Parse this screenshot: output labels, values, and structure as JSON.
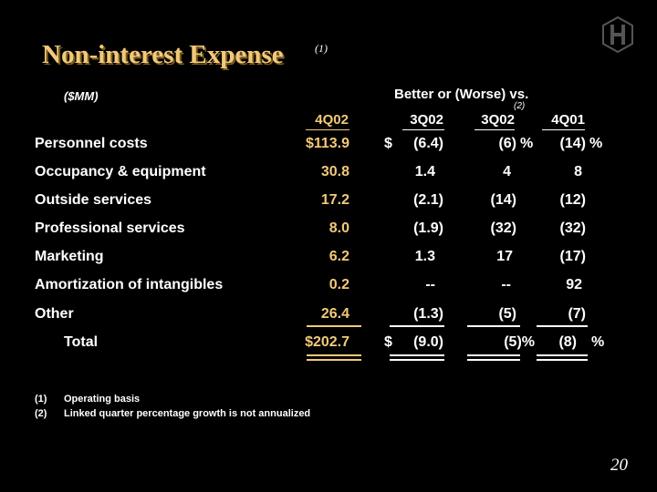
{
  "title": "Non-interest Expense",
  "title_note": "(1)",
  "units": "($MM)",
  "better_header": "Better or (Worse) vs.",
  "better_note": "(2)",
  "columns": [
    "4Q02",
    "3Q02",
    "3Q02",
    "4Q01"
  ],
  "rows": [
    {
      "label": "Personnel costs",
      "v0": "$113.9",
      "d": "$",
      "v1": "(6.4)",
      "v2": "(6)",
      "p2": "%",
      "v3": "(14)",
      "p3": "%"
    },
    {
      "label": "Occupancy & equipment",
      "v0": "30.8",
      "d": "",
      "v1": "1.4",
      "v2": "4",
      "p2": "",
      "v3": "8",
      "p3": ""
    },
    {
      "label": "Outside services",
      "v0": "17.2",
      "d": "",
      "v1": "(2.1)",
      "v2": "(14)",
      "p2": "",
      "v3": "(12)",
      "p3": ""
    },
    {
      "label": "Professional services",
      "v0": "8.0",
      "d": "",
      "v1": "(1.9)",
      "v2": "(32)",
      "p2": "",
      "v3": "(32)",
      "p3": ""
    },
    {
      "label": "Marketing",
      "v0": "6.2",
      "d": "",
      "v1": "1.3",
      "v2": "17",
      "p2": "",
      "v3": "(17)",
      "p3": ""
    },
    {
      "label": "Amortization of intangibles",
      "v0": "0.2",
      "d": "",
      "v1": "--",
      "v2": "--",
      "p2": "",
      "v3": "92",
      "p3": ""
    },
    {
      "label": "Other",
      "v0": "26.4",
      "d": "",
      "v1": "(1.3)",
      "v2": "(5)",
      "p2": "",
      "v3": "(7)",
      "p3": ""
    }
  ],
  "total": {
    "label": "Total",
    "v0": "$202.7",
    "d": "$",
    "v1": "(9.0)",
    "v2": "(5)%",
    "v3": "(8)",
    "p3": "%"
  },
  "footnotes": [
    {
      "num": "(1)",
      "text": "Operating basis"
    },
    {
      "num": "(2)",
      "text": "Linked quarter percentage growth is not annualized"
    }
  ],
  "page_number": "20",
  "colors": {
    "accent": "#f2c97a",
    "background": "#000000",
    "text": "#ffffff"
  },
  "logo_icon": "bank-monogram-logo-icon"
}
